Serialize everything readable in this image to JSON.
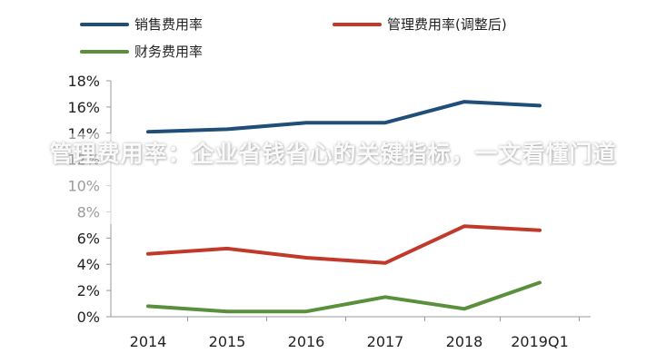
{
  "overlay": {
    "title": "管理费用率：企业省钱省心的关键指标，一文看懂门道"
  },
  "chart_data": {
    "type": "line",
    "categories": [
      "2014",
      "2015",
      "2016",
      "2017",
      "2018",
      "2019Q1"
    ],
    "series": [
      {
        "name": "销售费用率",
        "color": "#1f4e79",
        "values": [
          14.1,
          14.3,
          14.8,
          14.8,
          16.4,
          16.1
        ]
      },
      {
        "name": "管理费用率(调整后)",
        "color": "#c0392b",
        "values": [
          4.8,
          5.2,
          4.5,
          4.1,
          6.9,
          6.6
        ]
      },
      {
        "name": "财务费用率",
        "color": "#5a8f3c",
        "values": [
          0.8,
          0.4,
          0.4,
          1.5,
          0.6,
          2.6
        ]
      }
    ],
    "yticks": [
      "0%",
      "2%",
      "4%",
      "6%",
      "8%",
      "10%",
      "12%",
      "14%",
      "16%",
      "18%"
    ],
    "ylim": [
      0,
      18
    ],
    "grid": false,
    "legend": "top"
  }
}
